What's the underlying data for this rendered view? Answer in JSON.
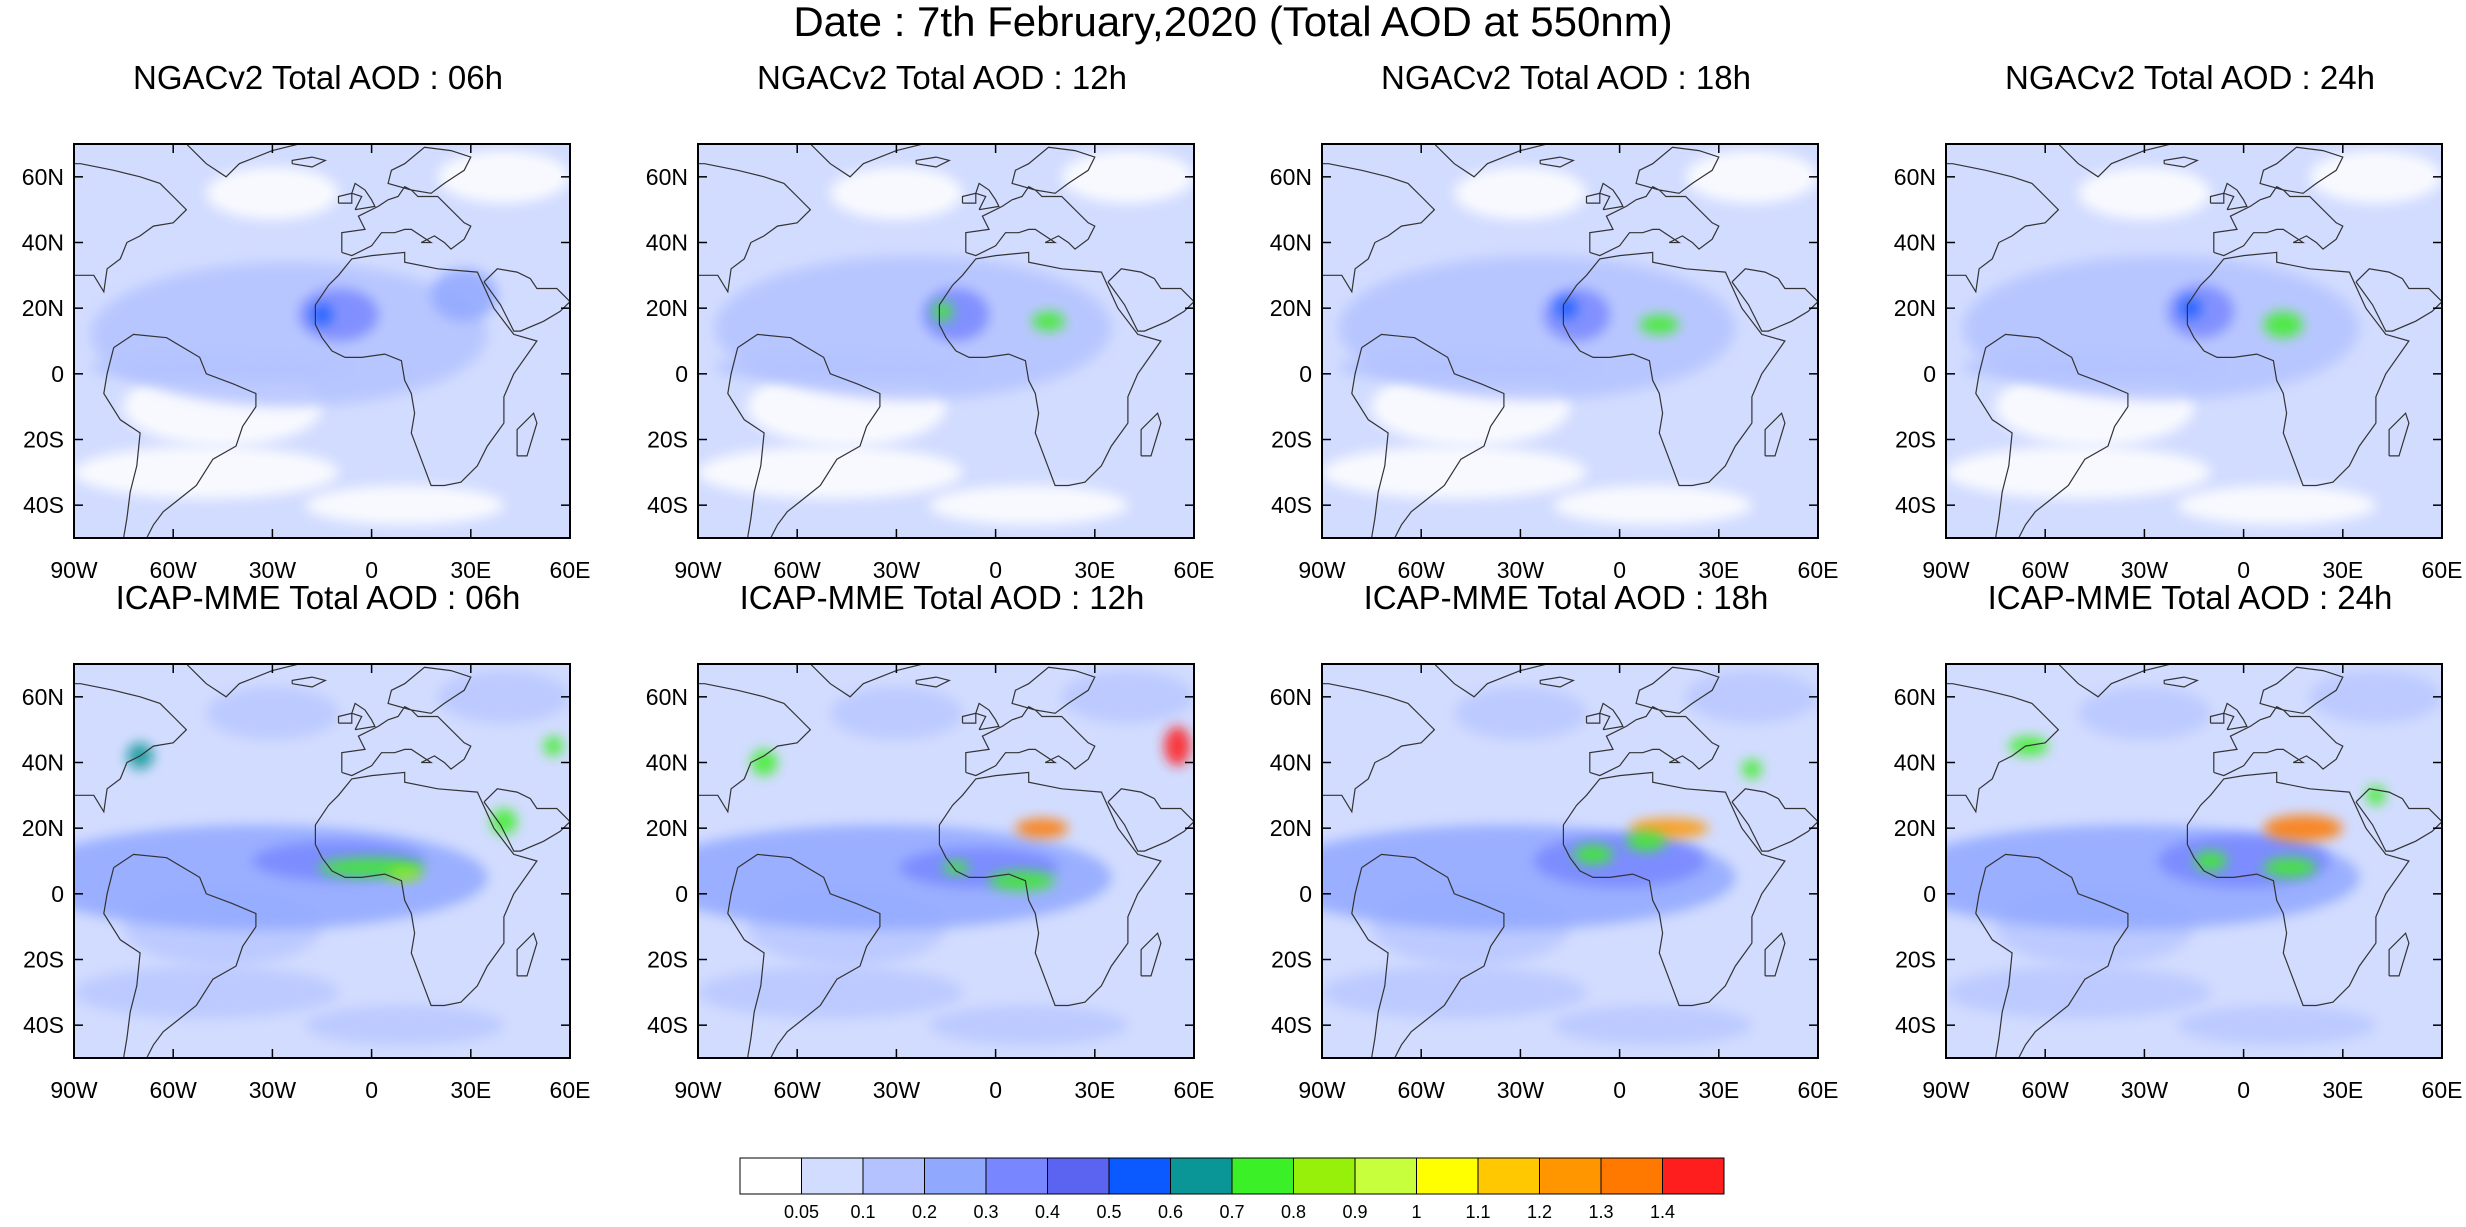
{
  "title": "Date : 7th February,2020 (Total AOD at 550nm)",
  "axes": {
    "lat_ticks": [
      "60N",
      "40N",
      "20N",
      "0",
      "20S",
      "40S"
    ],
    "lon_ticks": [
      "90W",
      "60W",
      "30W",
      "0",
      "30E",
      "60E"
    ],
    "lat_values": [
      60,
      40,
      20,
      0,
      -20,
      -40
    ],
    "lon_values": [
      -90,
      -60,
      -30,
      0,
      30,
      60
    ],
    "lat_range": [
      -50,
      70
    ],
    "lon_range": [
      -90,
      60
    ]
  },
  "panels": [
    {
      "title": "NGACv2 Total AOD : 06h",
      "model": "NGACv2",
      "hour": "06h"
    },
    {
      "title": "NGACv2 Total AOD : 12h",
      "model": "NGACv2",
      "hour": "12h"
    },
    {
      "title": "NGACv2 Total AOD : 18h",
      "model": "NGACv2",
      "hour": "18h"
    },
    {
      "title": "NGACv2 Total AOD : 24h",
      "model": "NGACv2",
      "hour": "24h"
    },
    {
      "title": "ICAP-MME Total AOD : 06h",
      "model": "ICAP-MME",
      "hour": "06h"
    },
    {
      "title": "ICAP-MME Total AOD : 12h",
      "model": "ICAP-MME",
      "hour": "12h"
    },
    {
      "title": "ICAP-MME Total AOD : 18h",
      "model": "ICAP-MME",
      "hour": "18h"
    },
    {
      "title": "ICAP-MME Total AOD : 24h",
      "model": "ICAP-MME",
      "hour": "24h"
    }
  ],
  "colorbar": {
    "labels": [
      "0.05",
      "0.1",
      "0.2",
      "0.3",
      "0.4",
      "0.5",
      "0.6",
      "0.7",
      "0.8",
      "0.9",
      "1",
      "1.1",
      "1.2",
      "1.3",
      "1.4"
    ],
    "colors": [
      "#ffffff",
      "#d2dcff",
      "#b4c3ff",
      "#91a8ff",
      "#7887ff",
      "#5a64f0",
      "#0a5aff",
      "#0a9696",
      "#3cf028",
      "#96f00a",
      "#c8ff3c",
      "#ffff00",
      "#ffc800",
      "#ff9600",
      "#ff7800",
      "#ff1e1e"
    ]
  }
}
